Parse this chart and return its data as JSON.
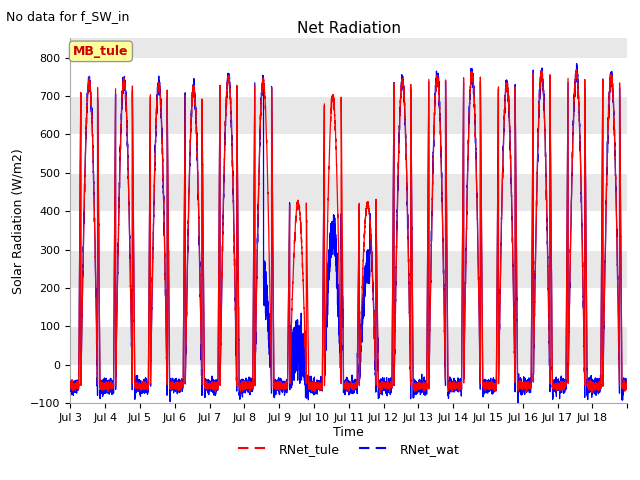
{
  "title": "Net Radiation",
  "suptitle": "No data for f_SW_in",
  "xlabel": "Time",
  "ylabel": "Solar Radiation (W/m2)",
  "ylim": [
    -100,
    850
  ],
  "yticks": [
    -100,
    0,
    100,
    200,
    300,
    400,
    500,
    600,
    700,
    800
  ],
  "x_tick_labels": [
    "Jul 3",
    "Jul 4",
    "Jul 5",
    "Jul 6",
    "Jul 7",
    "Jul 8",
    "Jul 9",
    "Jul 10",
    "Jul 11",
    "Jul 12",
    "Jul 13",
    "Jul 14",
    "Jul 15",
    "Jul 16",
    "Jul 17",
    "Jul 18"
  ],
  "legend_labels": [
    "RNet_tule",
    "RNet_wat"
  ],
  "color_tule": "#ff0000",
  "color_wat": "#0000ff",
  "annotation_text": "MB_tule",
  "annotation_color": "#cc0000",
  "annotation_bg": "#ffff99",
  "n_days": 16,
  "peak_value": 750,
  "night_value": -55,
  "points_per_day": 480,
  "bg_color": "#e8e8e8",
  "band_color": "#d8d8d8",
  "grid_color": "#ffffff"
}
